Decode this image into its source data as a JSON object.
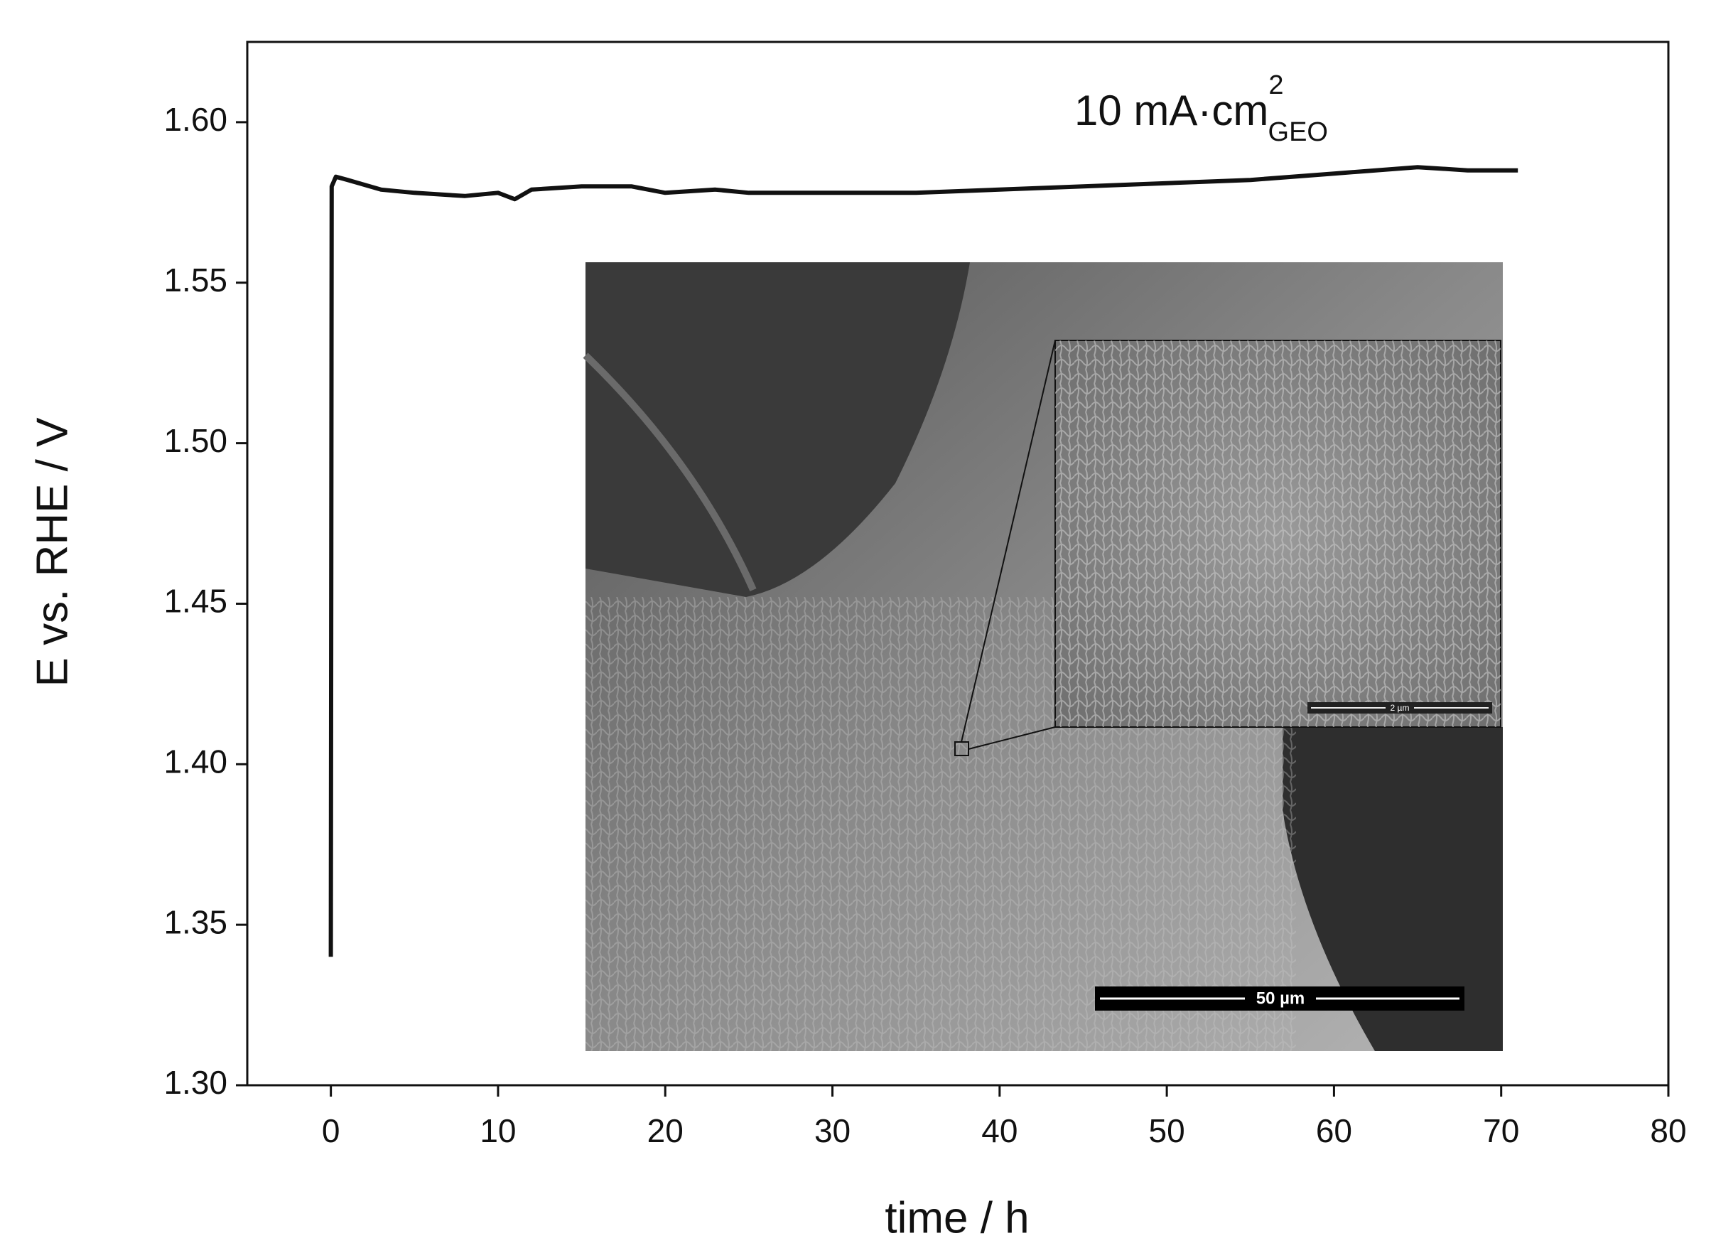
{
  "chart_data": {
    "type": "line",
    "xlabel": "time / h",
    "ylabel": "E vs. RHE / V",
    "annotation": {
      "text": "10 mA·cm",
      "sup": "2",
      "sub": "GEO"
    },
    "inset_scale_bars": [
      "50 µm",
      "2 µm"
    ],
    "x": [
      0,
      0.05,
      0.3,
      1,
      3,
      5,
      8,
      10,
      11,
      12,
      15,
      18,
      20,
      23,
      25,
      30,
      35,
      40,
      45,
      50,
      55,
      60,
      65,
      68,
      71
    ],
    "series": [
      {
        "color": "#111111",
        "values": [
          1.34,
          1.58,
          1.583,
          1.582,
          1.579,
          1.578,
          1.577,
          1.578,
          1.576,
          1.579,
          1.58,
          1.58,
          1.578,
          1.579,
          1.578,
          1.578,
          1.578,
          1.579,
          1.58,
          1.581,
          1.582,
          1.584,
          1.586,
          1.585,
          1.585
        ]
      }
    ],
    "xlim": [
      -5,
      80
    ],
    "ylim": [
      1.3,
      1.625
    ],
    "xticks": [
      0,
      10,
      20,
      30,
      40,
      50,
      60,
      70,
      80
    ],
    "yticks": [
      {
        "value": 1.3,
        "label": "1.30"
      },
      1.35,
      {
        "value": 1.4,
        "label": "1.40"
      },
      1.45,
      {
        "value": 1.5,
        "label": "1.50"
      },
      1.55,
      {
        "value": 1.6,
        "label": "1.60"
      }
    ]
  }
}
